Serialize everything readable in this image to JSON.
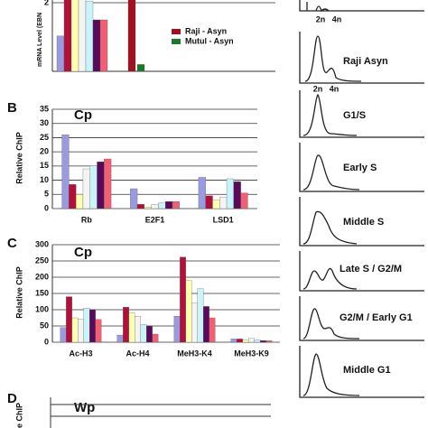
{
  "chart_data": [
    {
      "type": "bar",
      "ylabel": "mRNA Level (EBN",
      "ylim": [
        0,
        2.6
      ],
      "yticks": [
        2
      ],
      "values": [
        1.03,
        2.6,
        2.6,
        2.6,
        2.05,
        1.5,
        1.5,
        2.6,
        0.2
      ],
      "colors": [
        "#9a9ade",
        "#b0103a",
        "#ffffb0",
        "#f4f4f4",
        "#c8f4fa",
        "#5a0a5a",
        "#f06070",
        "#a01020",
        "#1a7a2a"
      ],
      "legend": [
        {
          "name": "Raji - Asyn",
          "color": "#a01020"
        },
        {
          "name": "Mutul - Asyn",
          "color": "#1a7a2a"
        }
      ]
    },
    {
      "type": "bar",
      "panel": "B",
      "title": "Cp",
      "ylabel": "Relative ChIP",
      "categories": [
        "Rb",
        "E2F1",
        "LSD1"
      ],
      "ylim": [
        0,
        35
      ],
      "yticks": [
        0,
        5,
        10,
        15,
        20,
        25,
        30,
        35
      ],
      "colors": [
        "#9a9ade",
        "#b0103a",
        "#ffffb0",
        "#f4f4f4",
        "#c8f4fa",
        "#5a0a5a",
        "#f06070"
      ],
      "groups": [
        [
          26,
          8.5,
          5,
          14,
          15,
          16.5,
          17.5
        ],
        [
          7,
          1.5,
          0.5,
          1.5,
          2,
          2.5,
          2.5
        ],
        [
          11,
          4.5,
          3,
          4,
          10.5,
          9.5,
          5.5
        ]
      ]
    },
    {
      "type": "bar",
      "panel": "C",
      "title": "Cp",
      "ylabel": "Relative ChIP",
      "categories": [
        "Ac-H3",
        "Ac-H4",
        "MeH3-K4",
        "MeH3-K9"
      ],
      "ylim": [
        0,
        300
      ],
      "yticks": [
        0,
        50,
        100,
        150,
        200,
        250,
        300
      ],
      "colors": [
        "#9a9ade",
        "#b0103a",
        "#ffffb0",
        "#f4f4f4",
        "#c8f4fa",
        "#5a0a5a",
        "#f06070"
      ],
      "groups": [
        [
          45,
          140,
          75,
          70,
          105,
          100,
          70
        ],
        [
          22,
          108,
          90,
          80,
          55,
          50,
          25
        ],
        [
          80,
          262,
          190,
          120,
          165,
          110,
          75
        ],
        [
          10,
          10,
          8,
          12,
          8,
          5,
          5
        ]
      ]
    },
    {
      "type": "empty",
      "panel": "D",
      "title": "Wp",
      "ylabel": "e ChIP"
    }
  ],
  "flow_panels": {
    "dna_labels": [
      "2n",
      "4n"
    ],
    "labels": [
      "Raji Asyn",
      "G1/S",
      "Early S",
      "Middle S",
      "Late S / G2/M",
      "G2/M / Early G1",
      "Middle G1"
    ]
  }
}
